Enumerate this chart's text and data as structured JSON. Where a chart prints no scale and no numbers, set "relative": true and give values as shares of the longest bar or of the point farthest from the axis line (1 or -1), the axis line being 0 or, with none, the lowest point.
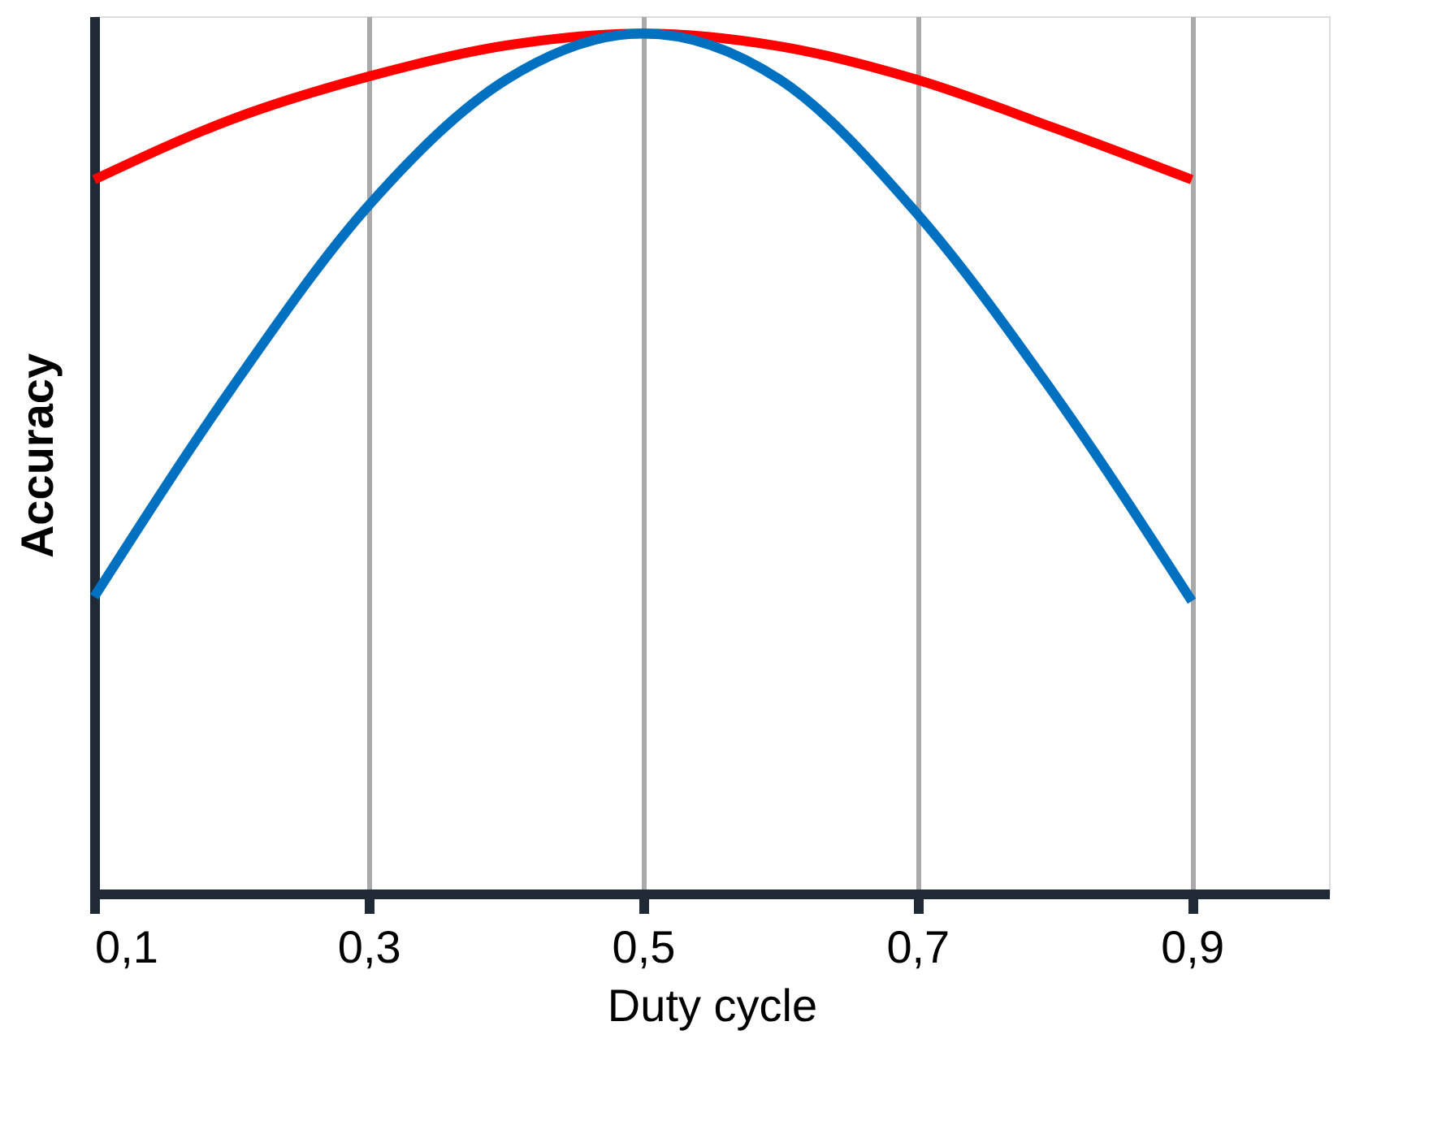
{
  "chart_data": {
    "type": "line",
    "xlabel": "Duty cycle",
    "ylabel": "Accuracy",
    "relative": true,
    "x": [
      0.1,
      0.2,
      0.3,
      0.4,
      0.5,
      0.6,
      0.7,
      0.8,
      0.9
    ],
    "xlim": [
      0.1,
      1.0
    ],
    "xticks": [
      {
        "value": 0.1,
        "label": "0,1"
      },
      {
        "value": 0.3,
        "label": "0,3"
      },
      {
        "value": 0.5,
        "label": "0,5"
      },
      {
        "value": 0.7,
        "label": "0,7"
      },
      {
        "value": 0.9,
        "label": "0,9"
      }
    ],
    "series": [
      {
        "color": "#ff0000",
        "values": [
          0.83,
          0.9,
          0.95,
          0.986,
          1,
          0.985,
          0.946,
          0.89,
          0.83
        ]
      },
      {
        "color": "#0070c0",
        "values": [
          0.345,
          0.587,
          0.8,
          0.946,
          1,
          0.946,
          0.79,
          0.58,
          0.34
        ]
      }
    ],
    "grid": "x",
    "tick_labels": "x",
    "marker": "none",
    "line_style": "solid"
  }
}
